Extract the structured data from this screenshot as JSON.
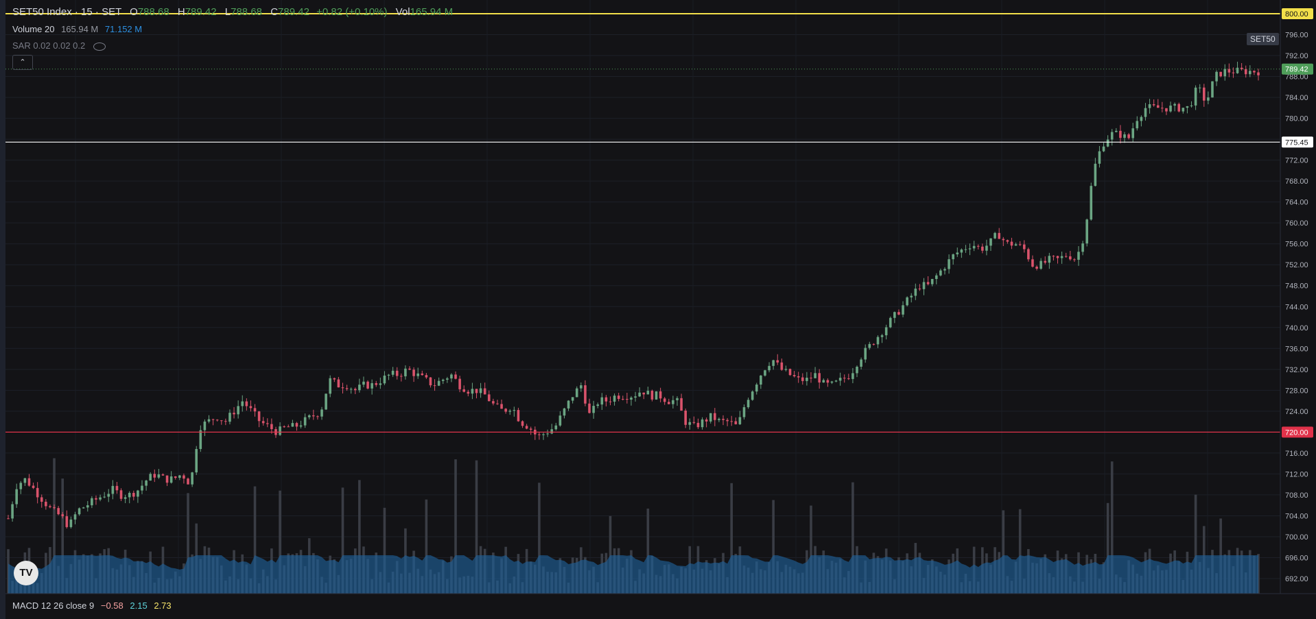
{
  "header": {
    "symbol_title": "SET50 Index · 15 · SET",
    "ohlc": [
      {
        "key": "O",
        "value": "788.68"
      },
      {
        "key": "H",
        "value": "789.42"
      },
      {
        "key": "L",
        "value": "788.68"
      },
      {
        "key": "C",
        "value": "789.42"
      }
    ],
    "change": "+0.82 (+0.10%)",
    "vol_key": "Vol",
    "vol_value": "165.94 M"
  },
  "indicators": {
    "volume_label": "Volume 20",
    "volume_v1": "165.94 M",
    "volume_v2": "71.152 M",
    "sar_label": "SAR 0.02 0.02 0.2",
    "collapse_glyph": "⌃"
  },
  "symbol_tag": "SET50",
  "macd": {
    "label": "MACD 12 26 close 9",
    "v1": "−0.58",
    "v2": "2.15",
    "v3": "2.73"
  },
  "logo_text": "TV",
  "colors": {
    "up": "#6ba583",
    "down": "#d9536b",
    "volume_bar": "#3a3d45",
    "volume_ma": "#1f5f96",
    "line_800": "#f3e04a",
    "line_775": "#ffffff",
    "line_720": "#e0324a",
    "last_price": "#4f9e5a"
  },
  "chart_data": {
    "type": "candlestick",
    "ylim": [
      690,
      800
    ],
    "y_ticks": [
      "796.00",
      "792.00",
      "788.00",
      "784.00",
      "780.00",
      "776.00",
      "772.00",
      "768.00",
      "764.00",
      "760.00",
      "756.00",
      "752.00",
      "748.00",
      "744.00",
      "740.00",
      "736.00",
      "732.00",
      "728.00",
      "724.00",
      "720.00",
      "716.00",
      "712.00",
      "708.00",
      "704.00",
      "700.00",
      "696.00",
      "692.00"
    ],
    "price_lines": [
      {
        "value": 800.0,
        "label": "800.00"
      },
      {
        "value": 775.45,
        "label": "775.45"
      },
      {
        "value": 720.0,
        "label": "720.00"
      }
    ],
    "last_price": {
      "value": 789.42,
      "label": "789.42"
    },
    "trend_closes": [
      703.5,
      710,
      711,
      709,
      707,
      705,
      704,
      702,
      705,
      706,
      707,
      708,
      709,
      708,
      708,
      709,
      711,
      712,
      711,
      711,
      712,
      710,
      721,
      722,
      723,
      722,
      724,
      726,
      724,
      722,
      721,
      720,
      721,
      721,
      722,
      723,
      724,
      730,
      729,
      729,
      728,
      729,
      729,
      730,
      731,
      731,
      732,
      731,
      730,
      729,
      730,
      731,
      729,
      728,
      728,
      727,
      725,
      724,
      725,
      722,
      721,
      719,
      720,
      721,
      724,
      727,
      729,
      723,
      726,
      726,
      727,
      727,
      727,
      728,
      727,
      727,
      726,
      726,
      722,
      721,
      722,
      723,
      722,
      722,
      721,
      726,
      729,
      732,
      734,
      732,
      731,
      730,
      730,
      731,
      729,
      729,
      730,
      731,
      734,
      736,
      738,
      740,
      742,
      744,
      746,
      748,
      748,
      750,
      752,
      754,
      755,
      756,
      755,
      756,
      758,
      756,
      756,
      755,
      752,
      752,
      753,
      753,
      754,
      753,
      758,
      770,
      775,
      777,
      777,
      776,
      780,
      782,
      782,
      782,
      782,
      782,
      782,
      786,
      783,
      788,
      789,
      789,
      789,
      789,
      789
    ]
  }
}
